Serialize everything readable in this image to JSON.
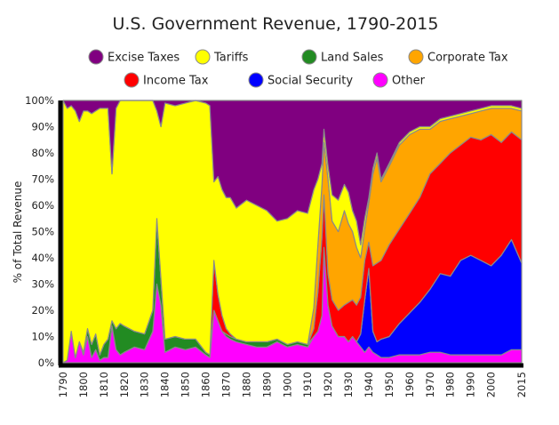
{
  "chart_data": {
    "type": "area",
    "stacking": "percent",
    "title": "U.S. Government Revenue, 1790-2015",
    "ylabel": "% of Total Revenue",
    "xlabel": "",
    "xlim": [
      1790,
      2015
    ],
    "ylim": [
      0,
      100
    ],
    "x_ticks": [
      "1790",
      "1800",
      "1810",
      "1820",
      "1830",
      "1840",
      "1850",
      "1860",
      "1870",
      "1880",
      "1890",
      "1900",
      "1910",
      "1920",
      "1930",
      "1940",
      "1950",
      "1960",
      "1970",
      "1980",
      "1990",
      "2000",
      "2015"
    ],
    "y_ticks": [
      "0%",
      "10%",
      "20%",
      "30%",
      "40%",
      "50%",
      "60%",
      "70%",
      "80%",
      "90%",
      "100%"
    ],
    "legend_position": "top",
    "grid": false,
    "x": [
      1790,
      1792,
      1794,
      1796,
      1798,
      1800,
      1802,
      1804,
      1806,
      1808,
      1810,
      1812,
      1814,
      1816,
      1818,
      1820,
      1825,
      1830,
      1834,
      1836,
      1838,
      1840,
      1845,
      1850,
      1855,
      1860,
      1862,
      1864,
      1866,
      1868,
      1870,
      1872,
      1875,
      1880,
      1885,
      1890,
      1895,
      1900,
      1905,
      1910,
      1913,
      1915,
      1917,
      1918,
      1920,
      1922,
      1925,
      1928,
      1930,
      1932,
      1934,
      1936,
      1938,
      1940,
      1942,
      1944,
      1946,
      1950,
      1955,
      1960,
      1965,
      1970,
      1975,
      1980,
      1985,
      1990,
      1995,
      2000,
      2005,
      2010,
      2015
    ],
    "series": [
      {
        "name": "Other",
        "color": "#ff00ff",
        "values": [
          0,
          1,
          12,
          2,
          8,
          3,
          10,
          2,
          5,
          1,
          2,
          2,
          14,
          5,
          3,
          4,
          6,
          5,
          12,
          30,
          22,
          4,
          6,
          5,
          6,
          3,
          2,
          20,
          16,
          12,
          10,
          9,
          8,
          7,
          6,
          6,
          8,
          6,
          7,
          6,
          10,
          12,
          18,
          44,
          22,
          14,
          10,
          10,
          8,
          10,
          8,
          6,
          4,
          6,
          4,
          3,
          2,
          2,
          3,
          3,
          3,
          4,
          4,
          3,
          3,
          3,
          3,
          3,
          3,
          5,
          5
        ]
      },
      {
        "name": "Social Security",
        "color": "#0000ff",
        "values": [
          0,
          0,
          0,
          0,
          0,
          0,
          0,
          0,
          0,
          0,
          0,
          0,
          0,
          0,
          0,
          0,
          0,
          0,
          0,
          0,
          0,
          0,
          0,
          0,
          0,
          0,
          0,
          0,
          0,
          0,
          0,
          0,
          0,
          0,
          0,
          0,
          0,
          0,
          0,
          0,
          0,
          0,
          0,
          0,
          0,
          0,
          0,
          0,
          0,
          0,
          0,
          5,
          20,
          30,
          8,
          5,
          7,
          8,
          12,
          16,
          20,
          24,
          30,
          30,
          36,
          38,
          36,
          34,
          38,
          42,
          33
        ]
      },
      {
        "name": "Land Sales",
        "color": "#228b22",
        "values": [
          0,
          0,
          0,
          0,
          0,
          1,
          3,
          5,
          6,
          2,
          5,
          7,
          2,
          8,
          12,
          10,
          6,
          6,
          8,
          25,
          10,
          5,
          4,
          4,
          3,
          1,
          1,
          0,
          0,
          0,
          1,
          1,
          1,
          1,
          2,
          2,
          1,
          1,
          1,
          1,
          0,
          0,
          0,
          0,
          0,
          0,
          0,
          0,
          0,
          0,
          0,
          0,
          0,
          0,
          0,
          0,
          0,
          0,
          0,
          0,
          0,
          0,
          0,
          0,
          0,
          0,
          0,
          0,
          0,
          0,
          0
        ]
      },
      {
        "name": "Income Tax",
        "color": "#ff0000",
        "values": [
          0,
          0,
          0,
          0,
          0,
          0,
          0,
          0,
          0,
          0,
          0,
          0,
          0,
          0,
          0,
          0,
          0,
          0,
          0,
          0,
          0,
          0,
          0,
          0,
          0,
          0,
          0,
          19,
          10,
          6,
          2,
          1,
          0,
          0,
          0,
          0,
          0,
          0,
          0,
          0,
          3,
          15,
          30,
          20,
          12,
          10,
          10,
          12,
          15,
          14,
          14,
          14,
          15,
          10,
          25,
          30,
          30,
          35,
          36,
          38,
          40,
          44,
          42,
          47,
          44,
          45,
          46,
          50,
          43,
          41,
          47
        ]
      },
      {
        "name": "Corporate Tax",
        "color": "#ffa500",
        "values": [
          0,
          0,
          0,
          0,
          0,
          0,
          0,
          0,
          0,
          0,
          0,
          0,
          0,
          0,
          0,
          0,
          0,
          0,
          0,
          0,
          0,
          0,
          0,
          0,
          0,
          0,
          0,
          0,
          0,
          0,
          0,
          0,
          0,
          0,
          0,
          0,
          0,
          0,
          0,
          0,
          8,
          18,
          20,
          20,
          36,
          30,
          30,
          36,
          30,
          26,
          22,
          15,
          12,
          15,
          35,
          40,
          30,
          30,
          32,
          30,
          26,
          17,
          16,
          13,
          11,
          9,
          11,
          10,
          13,
          9,
          11
        ]
      },
      {
        "name": "Tariffs",
        "color": "#ffff00",
        "values": [
          100,
          96,
          86,
          94,
          84,
          92,
          83,
          88,
          85,
          94,
          90,
          88,
          56,
          84,
          85,
          86,
          88,
          89,
          80,
          41,
          58,
          90,
          88,
          90,
          91,
          95,
          95,
          30,
          45,
          48,
          50,
          52,
          50,
          54,
          52,
          50,
          45,
          48,
          50,
          50,
          45,
          25,
          8,
          5,
          5,
          10,
          12,
          10,
          12,
          8,
          10,
          5,
          4,
          2,
          2,
          2,
          1,
          1,
          1,
          1,
          1,
          1,
          1,
          1,
          1,
          1,
          1,
          1,
          1,
          1,
          1
        ]
      },
      {
        "name": "Excise Taxes",
        "color": "#800080",
        "values": [
          0,
          3,
          2,
          4,
          8,
          4,
          4,
          5,
          4,
          3,
          3,
          3,
          28,
          3,
          0,
          0,
          0,
          0,
          0,
          4,
          10,
          1,
          2,
          1,
          0,
          1,
          2,
          31,
          29,
          34,
          37,
          37,
          41,
          38,
          40,
          42,
          46,
          45,
          42,
          43,
          34,
          30,
          24,
          11,
          25,
          36,
          38,
          32,
          35,
          42,
          46,
          55,
          45,
          37,
          26,
          20,
          30,
          24,
          16,
          12,
          10,
          10,
          7,
          6,
          5,
          4,
          3,
          2,
          2,
          2,
          3
        ]
      }
    ]
  }
}
